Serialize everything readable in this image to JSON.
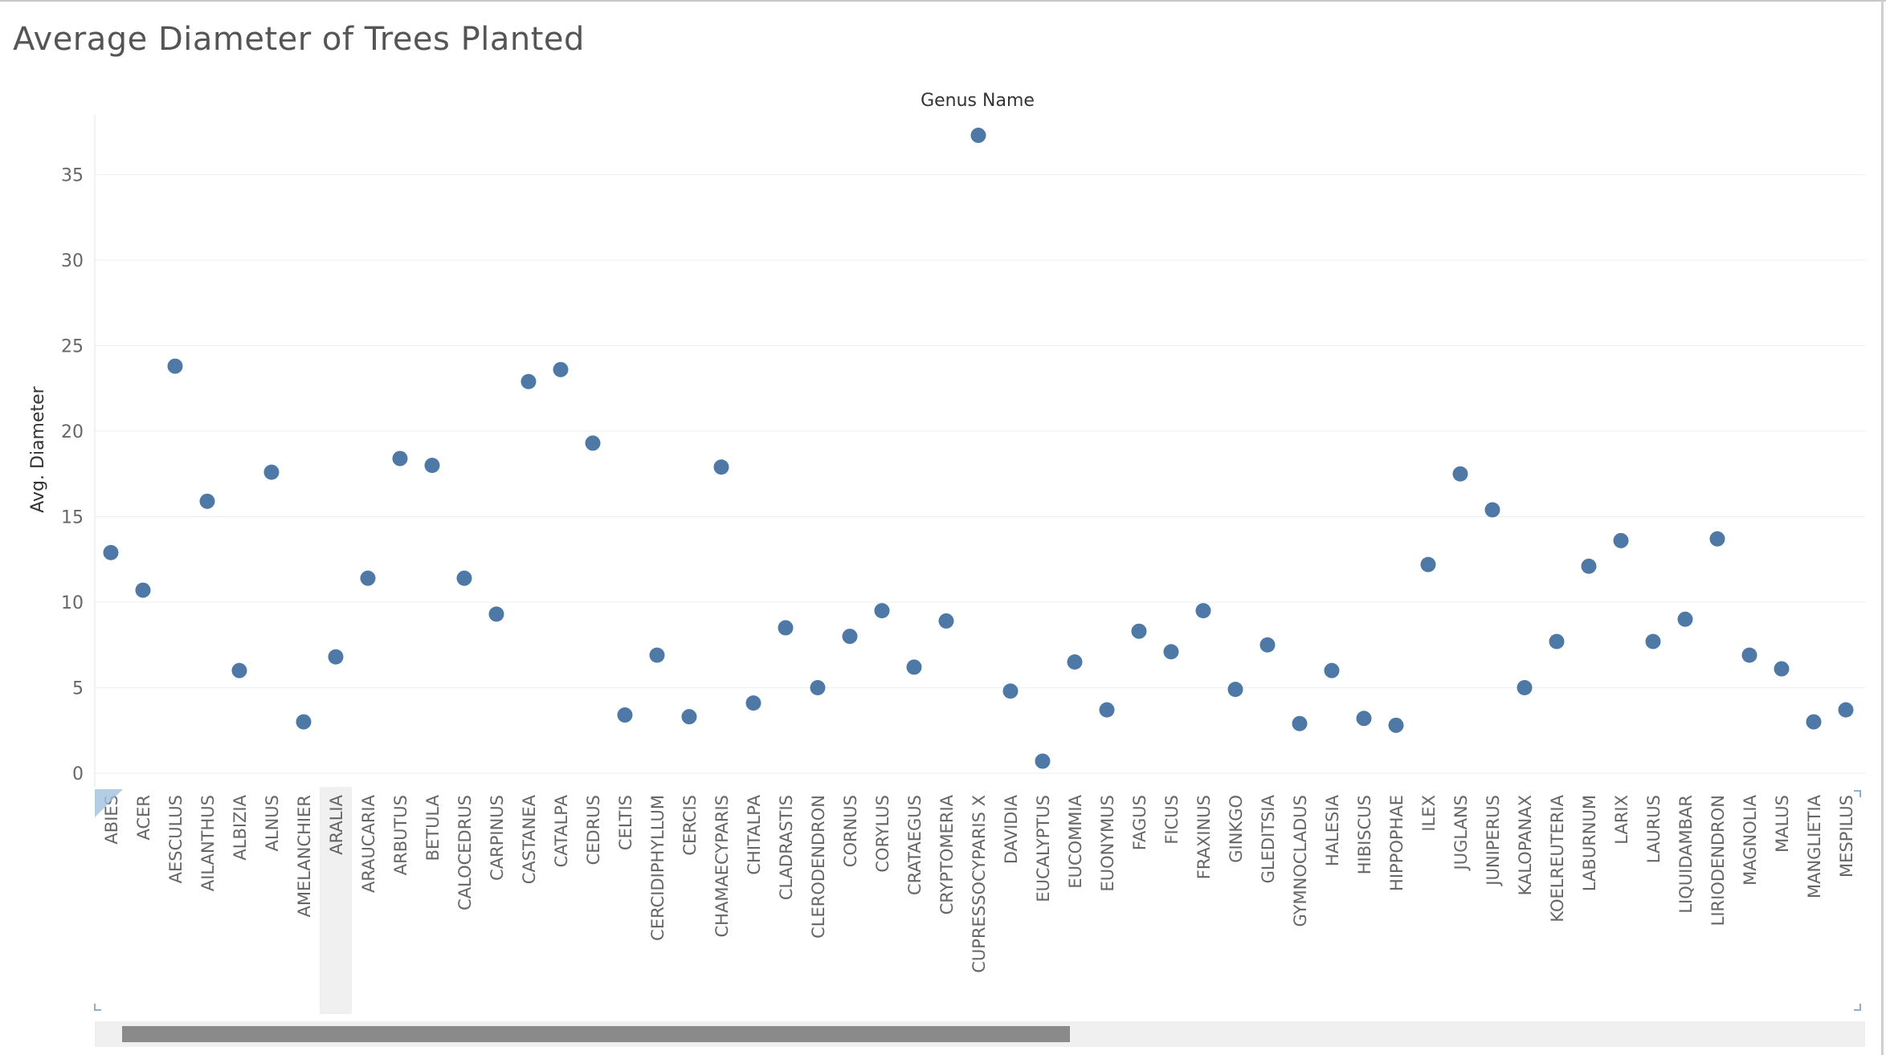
{
  "chart_data": {
    "type": "scatter",
    "title": "Average Diameter of Trees Planted",
    "column_header": "Genus Name",
    "ylabel": "Avg. Diameter",
    "ylim": [
      -0.8,
      38.5
    ],
    "yticks": [
      0,
      5,
      10,
      15,
      20,
      25,
      30,
      35
    ],
    "grid": true,
    "highlighted_category": "ARALIA",
    "marker_color": "#4e79a7",
    "categories": [
      "ABIES",
      "ACER",
      "AESCULUS",
      "AILANTHUS",
      "ALBIZIA",
      "ALNUS",
      "AMELANCHIER",
      "ARALIA",
      "ARAUCARIA",
      "ARBUTUS",
      "BETULA",
      "CALOCEDRUS",
      "CARPINUS",
      "CASTANEA",
      "CATALPA",
      "CEDRUS",
      "CELTIS",
      "CERCIDIPHYLLUM",
      "CERCIS",
      "CHAMAECYPARIS",
      "CHITALPA",
      "CLADRASTIS",
      "CLERODENDRON",
      "CORNUS",
      "CORYLUS",
      "CRATAEGUS",
      "CRYPTOMERIA",
      "CUPRESSOCYPARIS  X",
      "DAVIDIA",
      "EUCALYPTUS",
      "EUCOMMIA",
      "EUONYMUS",
      "FAGUS",
      "FICUS",
      "FRAXINUS",
      "GINKGO",
      "GLEDITSIA",
      "GYMNOCLADUS",
      "HALESIA",
      "HIBISCUS",
      "HIPPOPHAE",
      "ILEX",
      "JUGLANS",
      "JUNIPERUS",
      "KALOPANAX",
      "KOELREUTERIA",
      "LABURNUM",
      "LARIX",
      "LAURUS",
      "LIQUIDAMBAR",
      "LIRIODENDRON",
      "MAGNOLIA",
      "MALUS",
      "MANGLIETIA",
      "MESPILUS"
    ],
    "values": [
      12.9,
      10.7,
      23.8,
      15.9,
      6.0,
      17.6,
      3.0,
      6.8,
      11.4,
      18.4,
      18.0,
      11.4,
      9.3,
      22.9,
      23.6,
      19.3,
      3.4,
      6.9,
      3.3,
      17.9,
      4.1,
      8.5,
      5.0,
      8.0,
      9.5,
      6.2,
      8.9,
      37.3,
      4.8,
      0.7,
      6.5,
      3.7,
      8.3,
      7.1,
      9.5,
      4.9,
      7.5,
      2.9,
      6.0,
      3.2,
      2.8,
      12.2,
      17.5,
      15.4,
      5.0,
      7.7,
      12.1,
      13.6,
      7.7,
      9.0,
      13.7,
      6.9,
      6.1,
      3.0,
      3.7
    ]
  },
  "colors": {
    "title": "#555555",
    "axis_text": "#666666",
    "label_text": "#333333",
    "grid": "#eeeeee",
    "highlight": "#f0f0f0"
  }
}
